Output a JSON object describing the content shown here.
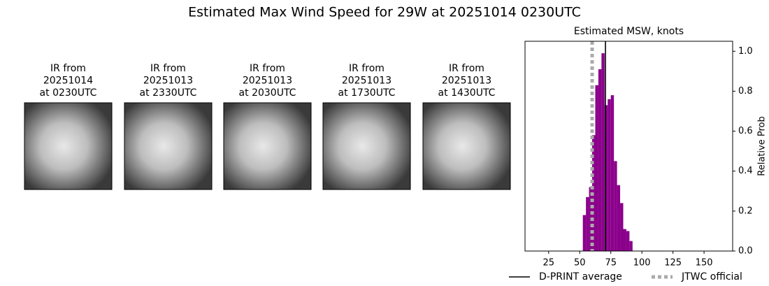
{
  "title": "Estimated Max Wind Speed for 29W at 20251014 0230UTC",
  "panels": [
    {
      "lines": [
        "IR from",
        "20251014",
        "at 0230UTC"
      ]
    },
    {
      "lines": [
        "IR from",
        "20251013",
        "at 2330UTC"
      ]
    },
    {
      "lines": [
        "IR from",
        "20251013",
        "at 2030UTC"
      ]
    },
    {
      "lines": [
        "IR from",
        "20251013",
        "at 1730UTC"
      ]
    },
    {
      "lines": [
        "IR from",
        "20251013",
        "at 1430UTC"
      ]
    }
  ],
  "chart_data": {
    "type": "histogram",
    "title": "Estimated MSW, knots",
    "y_label": "Relative Prob",
    "y_axis_side": "right",
    "color": "#8b008b",
    "bins": [
      52.5,
      55,
      57.5,
      60,
      62.5,
      65,
      67.5,
      70,
      72.5,
      75,
      77.5,
      80,
      82.5,
      85,
      87.5,
      90,
      92.5
    ],
    "values": [
      0.18,
      0.27,
      0.32,
      0.58,
      0.83,
      0.91,
      0.99,
      0.73,
      0.76,
      0.78,
      0.45,
      0.33,
      0.24,
      0.11,
      0.1,
      0.05
    ],
    "lines": [
      {
        "name": "D-PRINT average",
        "value": 70.7,
        "color": "#000000",
        "style": "solid"
      },
      {
        "name": "JTWC official",
        "value": 60,
        "color": "#aaaaaa",
        "style": "dotted"
      }
    ],
    "xlim": [
      6,
      173
    ],
    "xticks": [
      25,
      50,
      75,
      100,
      125,
      150
    ],
    "ylim": [
      0,
      1.05
    ],
    "yticks": [
      {
        "value": 0,
        "label": "0.0"
      },
      0.2,
      0.4,
      0.6,
      0.8,
      {
        "value": 1,
        "label": "1.0"
      }
    ]
  }
}
